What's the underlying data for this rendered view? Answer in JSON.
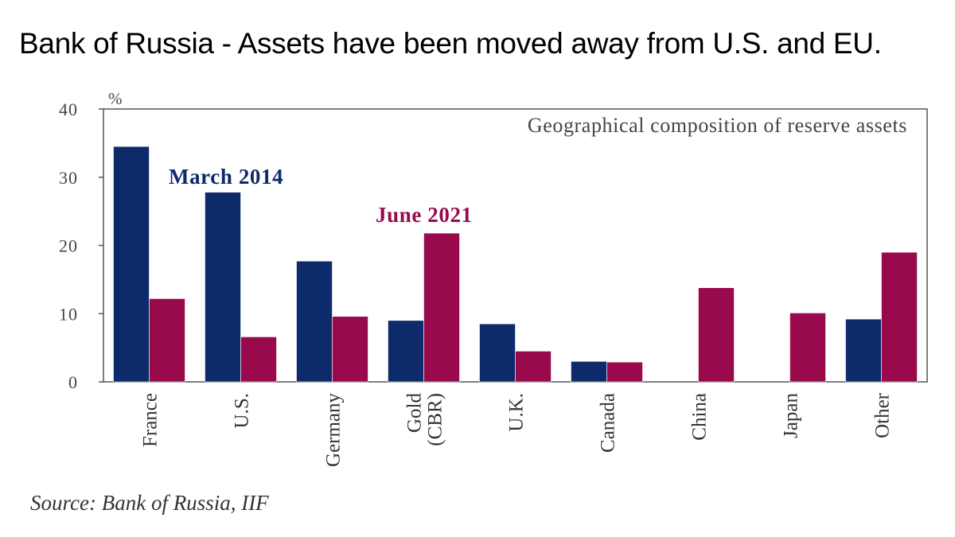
{
  "header": {
    "title": "Bank of Russia - Assets have been moved away from U.S. and EU."
  },
  "footer": {
    "source": "Source: Bank of Russia, IIF"
  },
  "chart_data": {
    "type": "bar",
    "title": "Geographical composition of reserve assets",
    "ylabel": "%",
    "ylim": [
      0,
      40
    ],
    "yticks": [
      0,
      10,
      20,
      30,
      40
    ],
    "grid": false,
    "categories": [
      [
        "France"
      ],
      [
        "U.S."
      ],
      [
        "Germany"
      ],
      [
        "Gold",
        "(CBR)"
      ],
      [
        "U.K."
      ],
      [
        "Canada"
      ],
      [
        "China"
      ],
      [
        "Japan"
      ],
      [
        "Other"
      ]
    ],
    "series": [
      {
        "name": "March 2014",
        "color": "#0d2a6b",
        "values": [
          34.5,
          27.8,
          17.7,
          9.0,
          8.5,
          3.0,
          0,
          0,
          9.2
        ]
      },
      {
        "name": "June 2021",
        "color": "#990a4c",
        "values": [
          12.2,
          6.6,
          9.6,
          21.8,
          4.5,
          2.9,
          13.8,
          10.1,
          19.0
        ]
      }
    ]
  }
}
